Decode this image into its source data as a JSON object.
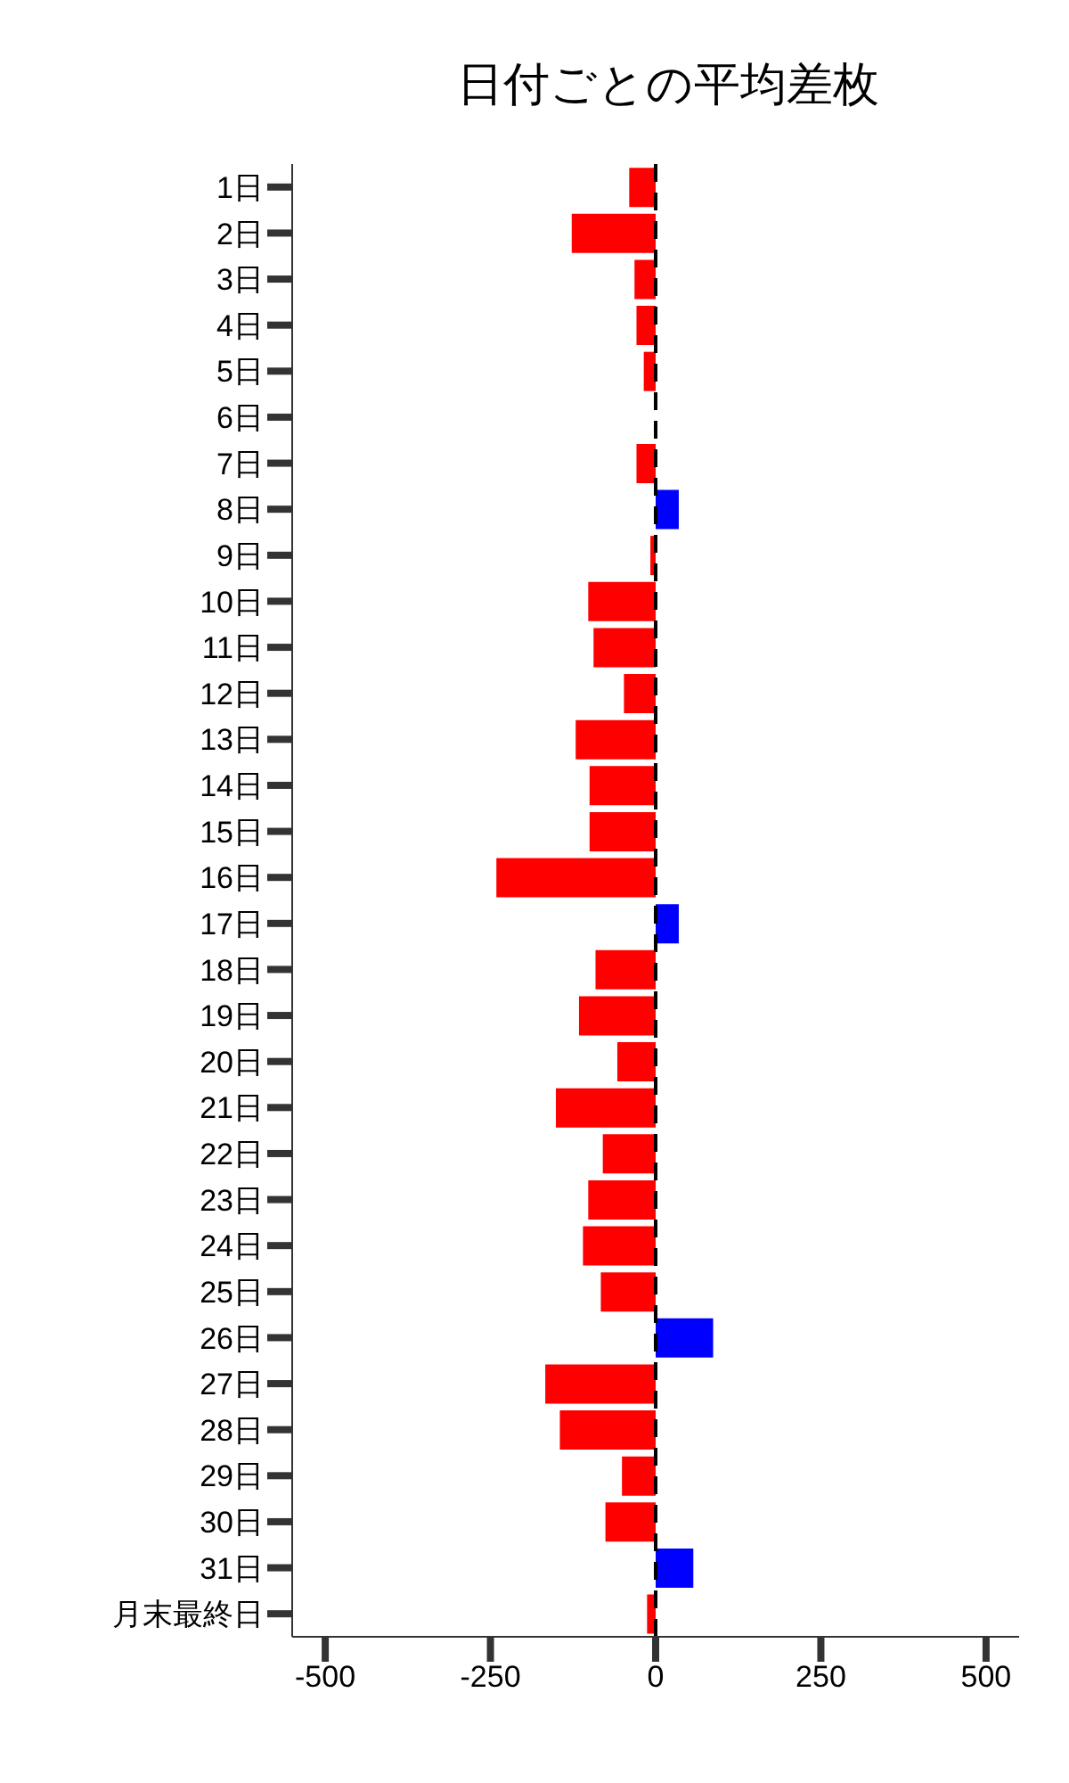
{
  "chart_data": {
    "type": "bar",
    "orientation": "horizontal",
    "title": "日付ごとの平均差枚",
    "categories": [
      "1日",
      "2日",
      "3日",
      "4日",
      "5日",
      "6日",
      "7日",
      "8日",
      "9日",
      "10日",
      "11日",
      "12日",
      "13日",
      "14日",
      "15日",
      "16日",
      "17日",
      "18日",
      "19日",
      "20日",
      "21日",
      "22日",
      "23日",
      "24日",
      "25日",
      "26日",
      "27日",
      "28日",
      "29日",
      "30日",
      "31日",
      "月末最終日"
    ],
    "values": [
      -40,
      -127,
      -32,
      -29,
      -18,
      0,
      -29,
      35,
      -8,
      -102,
      -94,
      -48,
      -121,
      -100,
      -100,
      -241,
      35,
      -91,
      -116,
      -58,
      -151,
      -80,
      -102,
      -110,
      -83,
      87,
      -167,
      -145,
      -51,
      -76,
      57,
      -13
    ],
    "colors": [
      "#ff0000",
      "#ff0000",
      "#ff0000",
      "#ff0000",
      "#ff0000",
      "#ff0000",
      "#ff0000",
      "#0000ff",
      "#ff0000",
      "#ff0000",
      "#ff0000",
      "#ff0000",
      "#ff0000",
      "#ff0000",
      "#ff0000",
      "#ff0000",
      "#0000ff",
      "#ff0000",
      "#ff0000",
      "#ff0000",
      "#ff0000",
      "#ff0000",
      "#ff0000",
      "#ff0000",
      "#ff0000",
      "#0000ff",
      "#ff0000",
      "#ff0000",
      "#ff0000",
      "#ff0000",
      "#0000ff",
      "#ff0000"
    ],
    "xlim": [
      -550,
      550
    ],
    "xticks": [
      -500,
      -250,
      0,
      250,
      500
    ],
    "grid": false,
    "legend": false,
    "ref_lines": [
      {
        "axis": "x",
        "value": 0,
        "color": "#000000",
        "line_style": "dashed"
      }
    ]
  }
}
